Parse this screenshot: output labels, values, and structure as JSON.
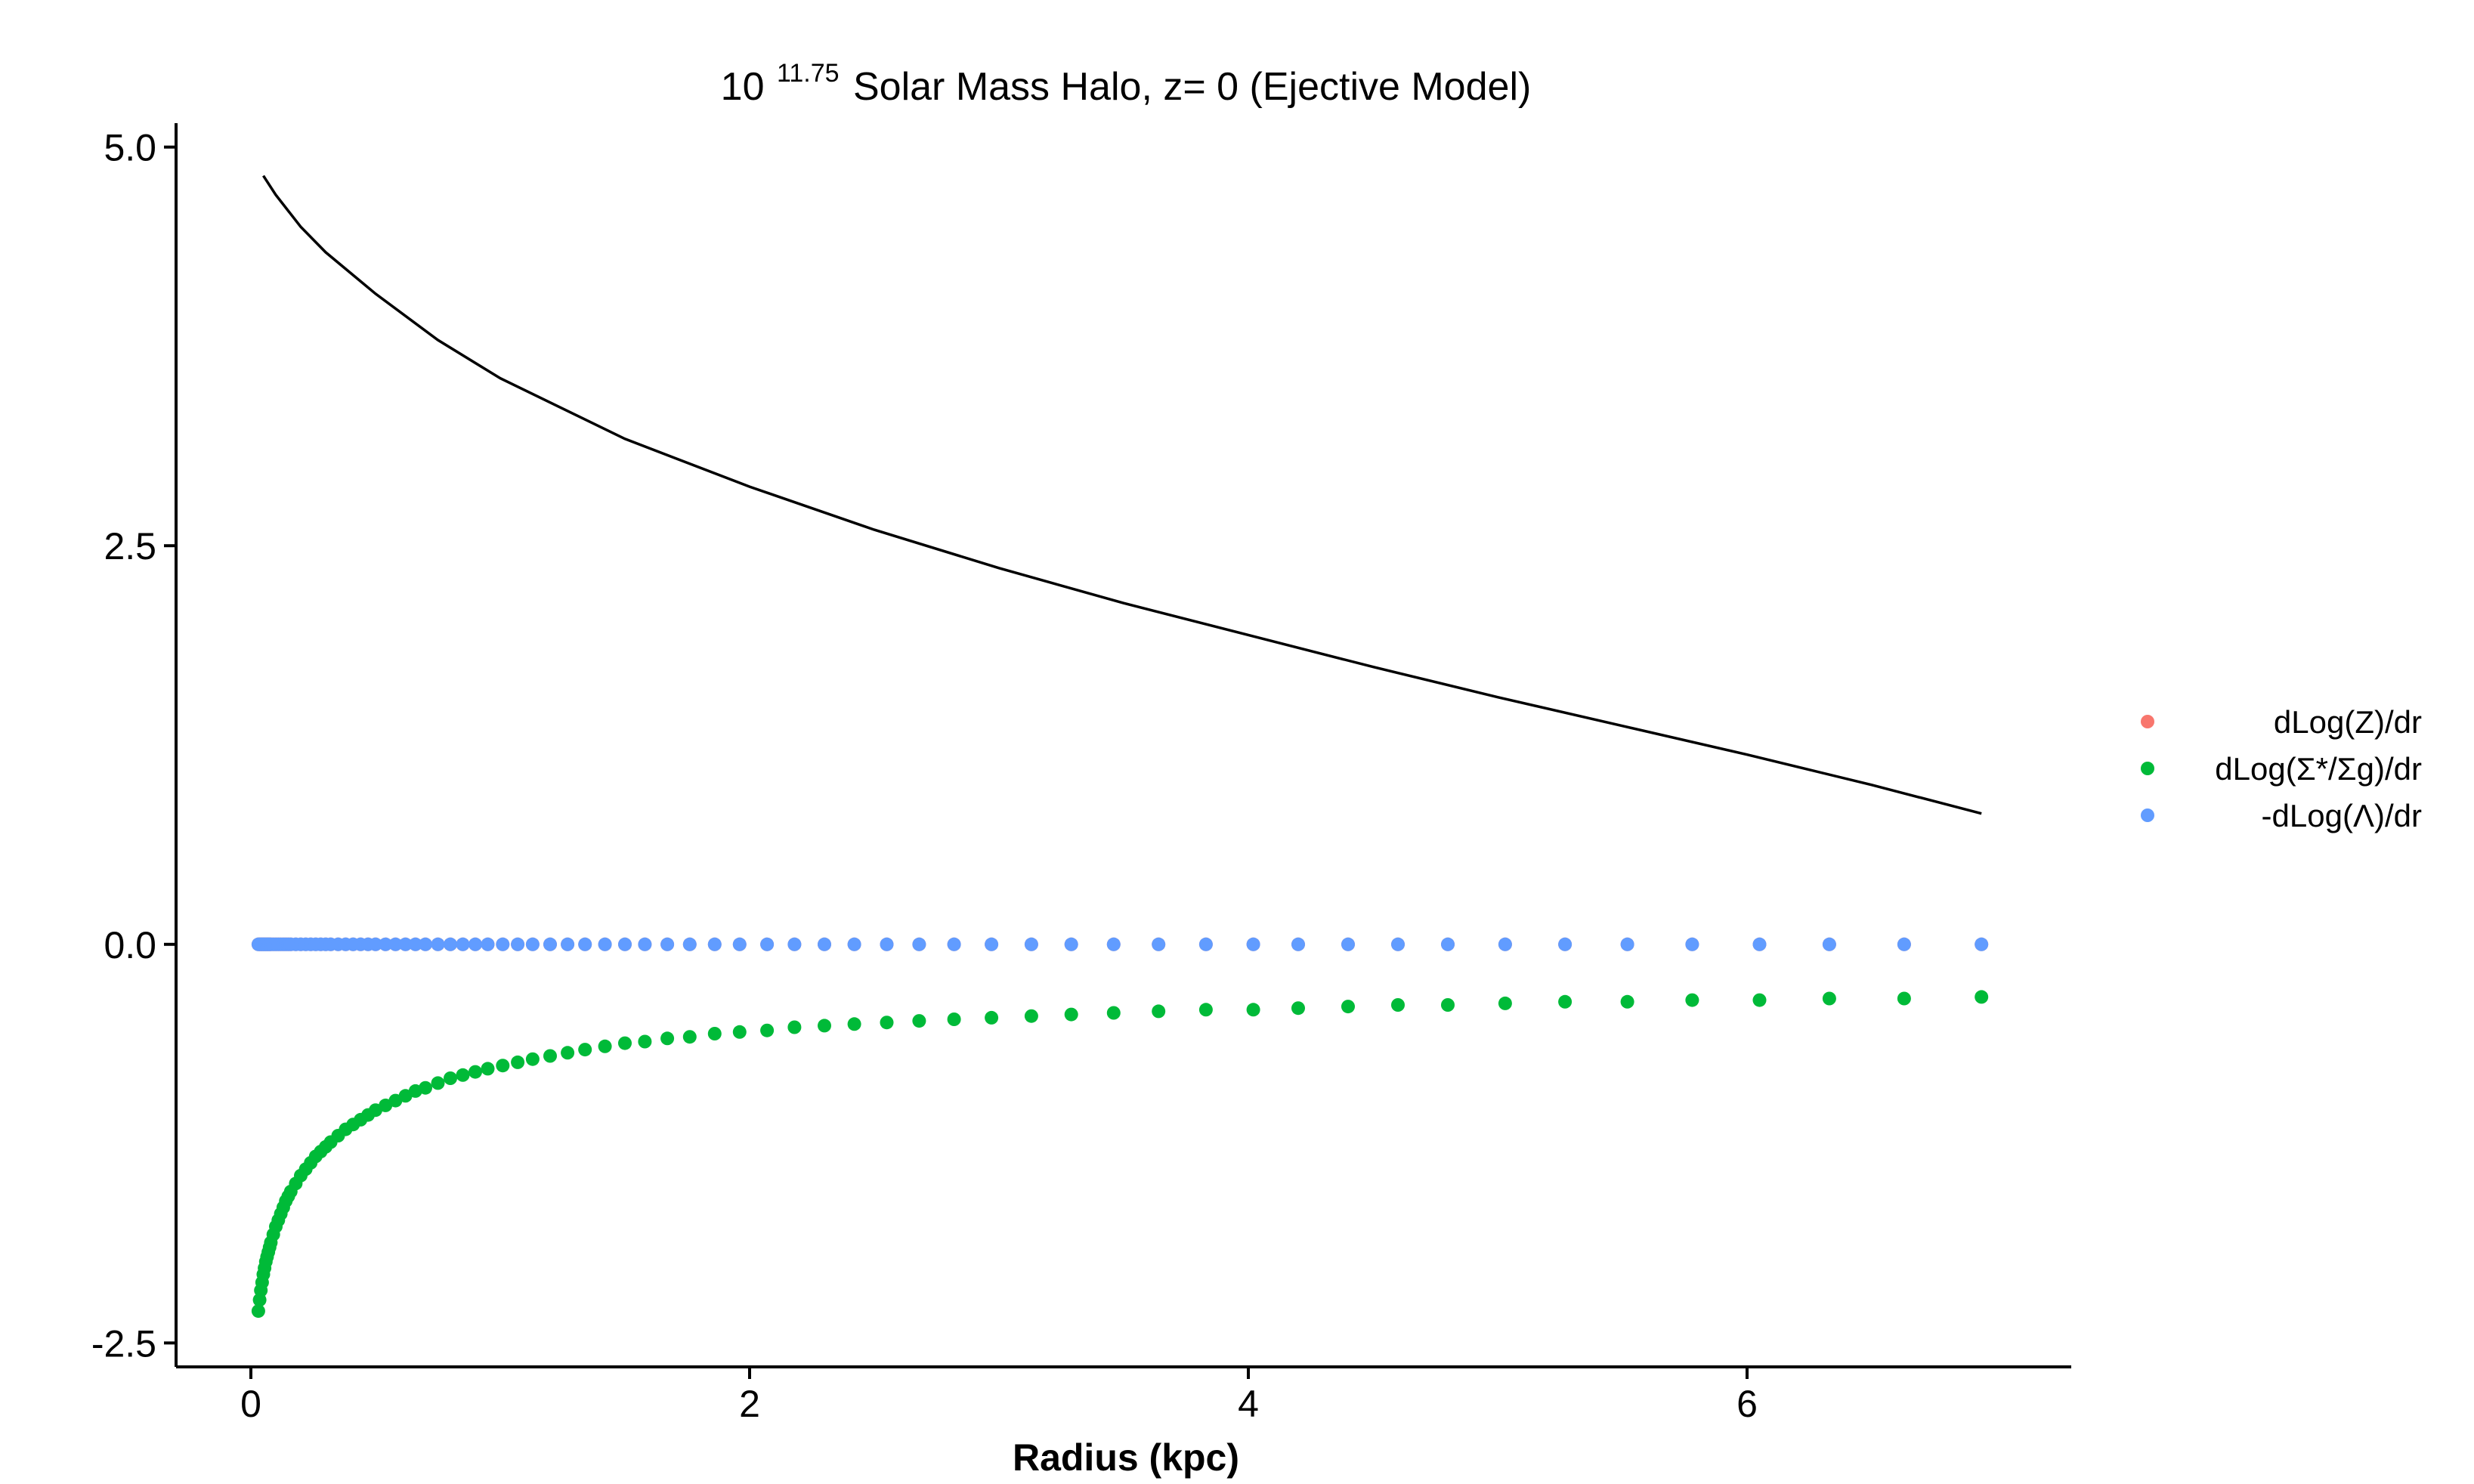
{
  "title": {
    "base": "10",
    "exponent": "11.75",
    "rest": "Solar Mass Halo, z= 0 (Ejective Model)"
  },
  "chart_data": {
    "type": "scatter",
    "title": "10^11.75 Solar Mass Halo, z= 0 (Ejective Model)",
    "xlabel": "Radius (kpc)",
    "ylabel": "",
    "xlim": [
      -0.3,
      7.3
    ],
    "ylim": [
      -2.65,
      5.15
    ],
    "x_ticks": [
      0,
      2,
      4,
      6
    ],
    "x_tick_labels": [
      "0",
      "2",
      "4",
      "6"
    ],
    "y_ticks": [
      5.0,
      2.5,
      0.0,
      -2.5
    ],
    "y_tick_labels": [
      "5.0",
      "2.5",
      "0.0",
      "-2.5"
    ],
    "grid": false,
    "legend_position": "right",
    "x": [
      0.03,
      0.035,
      0.04,
      0.045,
      0.05,
      0.055,
      0.06,
      0.065,
      0.07,
      0.075,
      0.08,
      0.09,
      0.1,
      0.11,
      0.12,
      0.13,
      0.14,
      0.15,
      0.16,
      0.18,
      0.2,
      0.22,
      0.24,
      0.26,
      0.28,
      0.3,
      0.32,
      0.35,
      0.38,
      0.41,
      0.44,
      0.47,
      0.5,
      0.54,
      0.58,
      0.62,
      0.66,
      0.7,
      0.75,
      0.8,
      0.85,
      0.9,
      0.95,
      1.01,
      1.07,
      1.13,
      1.2,
      1.27,
      1.34,
      1.42,
      1.5,
      1.58,
      1.67,
      1.76,
      1.86,
      1.96,
      2.07,
      2.18,
      2.3,
      2.42,
      2.55,
      2.68,
      2.82,
      2.97,
      3.13,
      3.29,
      3.46,
      3.64,
      3.83,
      4.02,
      4.2,
      4.4,
      4.6,
      4.8,
      5.03,
      5.27,
      5.52,
      5.78,
      6.05,
      6.33,
      6.63,
      6.94
    ],
    "series": [
      {
        "name": "dLog(Z)/dr",
        "color": "#F8766D",
        "values": [
          0,
          0,
          0,
          0,
          0,
          0,
          0,
          0,
          0,
          0,
          0,
          0,
          0,
          0,
          0,
          0,
          0,
          0,
          0,
          0,
          0,
          0,
          0,
          0,
          0,
          0,
          0,
          0,
          0,
          0,
          0,
          0,
          0,
          0,
          0,
          0,
          0,
          0,
          0,
          0,
          0,
          0,
          0,
          0,
          0,
          0,
          0,
          0,
          0,
          0,
          0,
          0,
          0,
          0,
          0,
          0,
          0,
          0,
          0,
          0,
          0,
          0,
          0,
          0,
          0,
          0,
          0,
          0,
          0,
          0,
          0,
          0,
          0,
          0,
          0,
          0,
          0,
          0,
          0,
          0,
          0,
          0
        ]
      },
      {
        "name": "dLog(Σ*/Σg)/dr",
        "color": "#00BA38",
        "values": [
          -2.3,
          -2.23,
          -2.17,
          -2.12,
          -2.07,
          -2.03,
          -1.99,
          -1.96,
          -1.93,
          -1.9,
          -1.87,
          -1.82,
          -1.77,
          -1.73,
          -1.69,
          -1.65,
          -1.61,
          -1.58,
          -1.55,
          -1.5,
          -1.45,
          -1.41,
          -1.37,
          -1.33,
          -1.3,
          -1.27,
          -1.24,
          -1.2,
          -1.16,
          -1.13,
          -1.1,
          -1.07,
          -1.04,
          -1.01,
          -0.98,
          -0.95,
          -0.92,
          -0.9,
          -0.87,
          -0.84,
          -0.82,
          -0.8,
          -0.78,
          -0.76,
          -0.74,
          -0.72,
          -0.7,
          -0.68,
          -0.66,
          -0.64,
          -0.62,
          -0.61,
          -0.59,
          -0.58,
          -0.56,
          -0.55,
          -0.54,
          -0.52,
          -0.51,
          -0.5,
          -0.49,
          -0.48,
          -0.47,
          -0.46,
          -0.45,
          -0.44,
          -0.43,
          -0.42,
          -0.41,
          -0.41,
          -0.4,
          -0.39,
          -0.38,
          -0.38,
          -0.37,
          -0.36,
          -0.36,
          -0.35,
          -0.35,
          -0.34,
          -0.34,
          -0.33
        ]
      },
      {
        "name": "-dLog(Λ)/dr",
        "color": "#619CFF",
        "values": [
          0,
          0,
          0,
          0,
          0,
          0,
          0,
          0,
          0,
          0,
          0,
          0,
          0,
          0,
          0,
          0,
          0,
          0,
          0,
          0,
          0,
          0,
          0,
          0,
          0,
          0,
          0,
          0,
          0,
          0,
          0,
          0,
          0,
          0,
          0,
          0,
          0,
          0,
          0,
          0,
          0,
          0,
          0,
          0,
          0,
          0,
          0,
          0,
          0,
          0,
          0,
          0,
          0,
          0,
          0,
          0,
          0,
          0,
          0,
          0,
          0,
          0,
          0,
          0,
          0,
          0,
          0,
          0,
          0,
          0,
          0,
          0,
          0,
          0,
          0,
          0,
          0,
          0,
          0,
          0,
          0,
          0
        ]
      }
    ],
    "line": {
      "color": "#000000",
      "x": [
        0.05,
        0.1,
        0.2,
        0.3,
        0.5,
        0.75,
        1.0,
        1.5,
        2.0,
        2.5,
        3.0,
        3.5,
        4.0,
        4.5,
        5.0,
        5.5,
        6.0,
        6.5,
        6.94
      ],
      "y": [
        4.82,
        4.7,
        4.5,
        4.34,
        4.08,
        3.79,
        3.55,
        3.17,
        2.87,
        2.6,
        2.36,
        2.14,
        1.94,
        1.74,
        1.55,
        1.37,
        1.19,
        1.0,
        0.82
      ]
    }
  },
  "legend": {
    "items": [
      {
        "label": "dLog(Z)/dr",
        "color": "#F8766D"
      },
      {
        "label": "dLog(Σ*/Σg)/dr",
        "color": "#00BA38"
      },
      {
        "label": "-dLog(Λ)/dr",
        "color": "#619CFF"
      }
    ]
  }
}
